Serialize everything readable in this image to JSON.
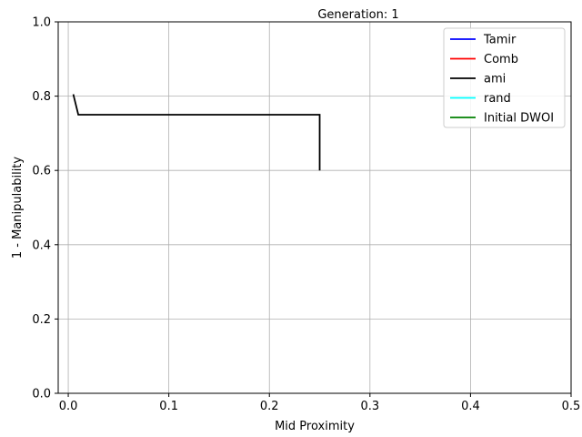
{
  "chart_data": {
    "type": "line",
    "title": "Generation: 1",
    "xlabel": "Mid Proximity",
    "ylabel": "1 - Manipulability",
    "xlim": [
      -0.01,
      0.5
    ],
    "ylim": [
      0.0,
      1.0
    ],
    "xticks": [
      0.0,
      0.1,
      0.2,
      0.3,
      0.4,
      0.5
    ],
    "xtick_labels": [
      "0.0",
      "0.1",
      "0.2",
      "0.3",
      "0.4",
      "0.5"
    ],
    "yticks": [
      0.0,
      0.2,
      0.4,
      0.6,
      0.8,
      1.0
    ],
    "ytick_labels": [
      "0.0",
      "0.2",
      "0.4",
      "0.6",
      "0.8",
      "1.0"
    ],
    "grid": true,
    "legend_position": "top-right",
    "series": [
      {
        "name": "Tamir",
        "color": "#0000ff",
        "x": [],
        "y": []
      },
      {
        "name": "Comb",
        "color": "#ff0000",
        "x": [],
        "y": []
      },
      {
        "name": "ami",
        "color": "#000000",
        "x": [
          0.005,
          0.01,
          0.25,
          0.25
        ],
        "y": [
          0.805,
          0.75,
          0.75,
          0.6
        ]
      },
      {
        "name": "rand",
        "color": "#00ffff",
        "x": [],
        "y": []
      },
      {
        "name": "Initial DWOI",
        "color": "#008000",
        "x": [],
        "y": []
      }
    ]
  }
}
